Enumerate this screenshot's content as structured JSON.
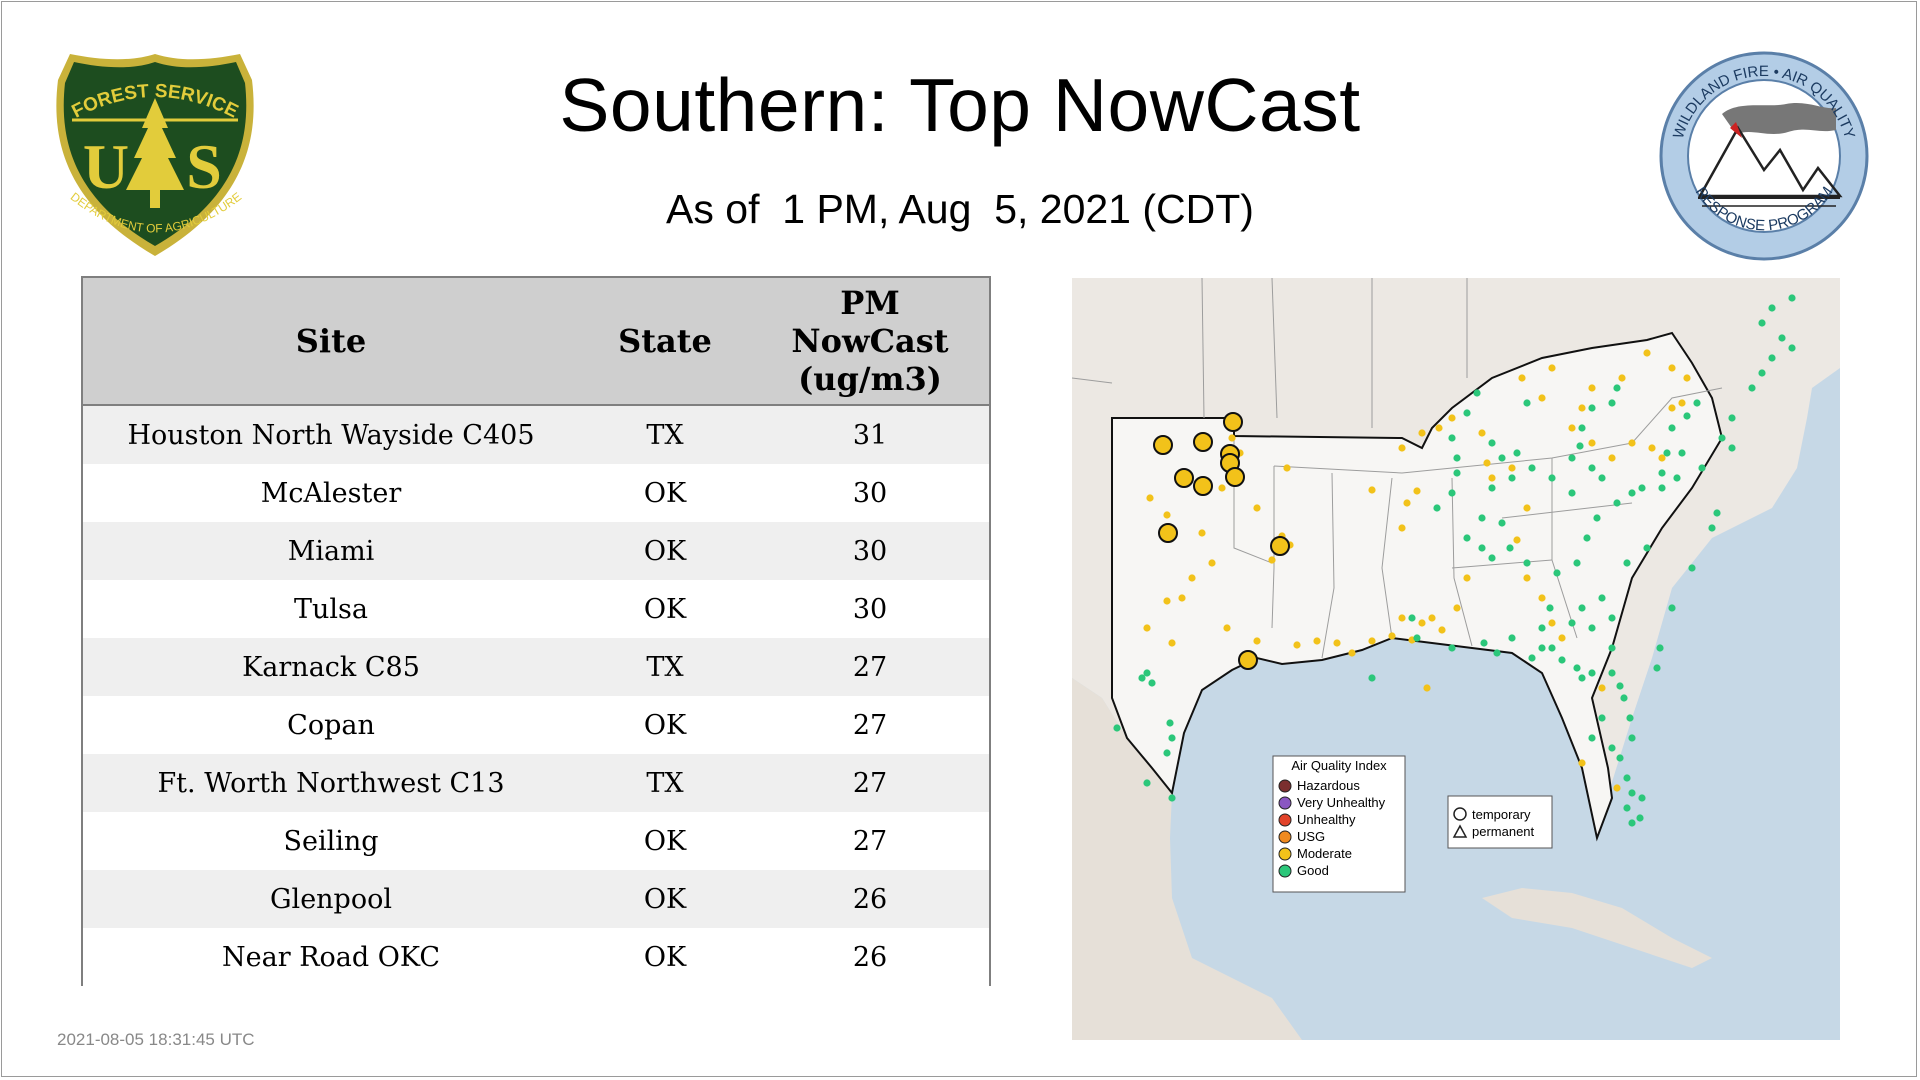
{
  "title": "Southern: Top NowCast",
  "subtitle": "As of  1 PM, Aug  5, 2021 (CDT)",
  "timestamp": "2021-08-05 18:31:45 UTC",
  "usfs_logo": {
    "top_text": "FOREST SERVICE",
    "bottom_text": "DEPARTMENT OF AGRICULTURE",
    "letters_left": "U",
    "letters_right": "S",
    "colors": {
      "green": "#1d4d1f",
      "gold": "#e2cc3b",
      "outline": "#c9b23a"
    }
  },
  "waq_logo": {
    "top_text": "WILDLAND FIRE • AIR QUALITY",
    "bottom_text": "RESPONSE PROGRAM",
    "colors": {
      "ring": "#b3cde6",
      "border": "#5a7fa8",
      "smoke": "#777777",
      "flame": "#cc2222"
    }
  },
  "table": {
    "headers": {
      "site": "Site",
      "state": "State",
      "value_line1": "PM",
      "value_line2": "NowCast",
      "value_line3": "(ug/m3)"
    },
    "rows": [
      {
        "site": "Houston North Wayside C405",
        "state": "TX",
        "value": "31"
      },
      {
        "site": "McAlester",
        "state": "OK",
        "value": "30"
      },
      {
        "site": "Miami",
        "state": "OK",
        "value": "30"
      },
      {
        "site": "Tulsa",
        "state": "OK",
        "value": "30"
      },
      {
        "site": "Karnack C85",
        "state": "TX",
        "value": "27"
      },
      {
        "site": "Copan",
        "state": "OK",
        "value": "27"
      },
      {
        "site": "Ft. Worth Northwest C13",
        "state": "TX",
        "value": "27"
      },
      {
        "site": "Seiling",
        "state": "OK",
        "value": "27"
      },
      {
        "site": "Glenpool",
        "state": "OK",
        "value": "26"
      },
      {
        "site": "Near Road OKC",
        "state": "OK",
        "value": "26"
      }
    ]
  },
  "map": {
    "colors": {
      "water": "#c6d8e6",
      "land": "#ece8e3",
      "region": "#f7f6f4",
      "state_line": "#9d9d9d",
      "outline": "#111111",
      "moderate": "#f2c21a",
      "good": "#2bc77a"
    },
    "legend": {
      "title": "Air Quality Index",
      "items": [
        {
          "label": "Hazardous",
          "color": "#7b2f2f"
        },
        {
          "label": "Very Unhealthy",
          "color": "#8a56c2"
        },
        {
          "label": "Unhealthy",
          "color": "#e2432a"
        },
        {
          "label": "USG",
          "color": "#f08a1f"
        },
        {
          "label": "Moderate",
          "color": "#f2c21a"
        },
        {
          "label": "Good",
          "color": "#2bc77a"
        }
      ]
    },
    "site_type_legend": {
      "temporary": "temporary",
      "permanent": "permanent"
    }
  }
}
